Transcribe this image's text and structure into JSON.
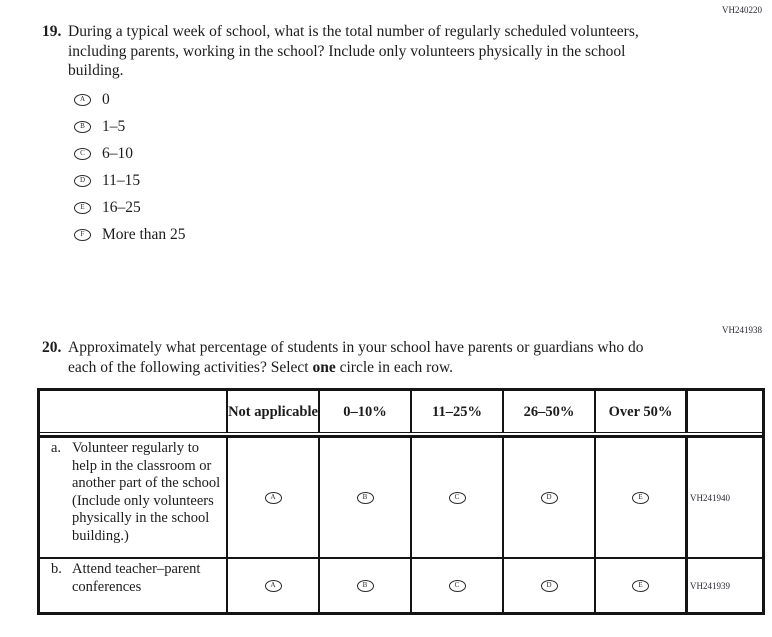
{
  "q19": {
    "code": "VH240220",
    "number": "19.",
    "text": "During a typical week of school, what is the total number of regularly scheduled volunteers, including parents, working in the school? Include only volunteers physically in the school building.",
    "options": [
      {
        "letter": "A",
        "label": "0"
      },
      {
        "letter": "B",
        "label": "1–5"
      },
      {
        "letter": "C",
        "label": "6–10"
      },
      {
        "letter": "D",
        "label": "11–15"
      },
      {
        "letter": "E",
        "label": "16–25"
      },
      {
        "letter": "F",
        "label": "More than 25"
      }
    ]
  },
  "q20": {
    "code": "VH241938",
    "number": "20.",
    "text_before_bold": "Approximately what percentage of students in your school have parents or guardians who do each of the following activities? Select ",
    "bold_word": "one",
    "text_after_bold": " circle in each row.",
    "table": {
      "headers": [
        "Not applicable",
        "0–10%",
        "11–25%",
        "26–50%",
        "Over 50%"
      ],
      "rows": [
        {
          "prefix": "a.",
          "label": "Volunteer regularly to help in the classroom or another part of the school (Include only volunteers physically in the school building.)",
          "letters": [
            "A",
            "B",
            "C",
            "D",
            "E"
          ],
          "code": "VH241940"
        },
        {
          "prefix": "b.",
          "label": "Attend teacher–parent conferences",
          "letters": [
            "A",
            "B",
            "C",
            "D",
            "E"
          ],
          "code": "VH241939"
        }
      ]
    }
  }
}
